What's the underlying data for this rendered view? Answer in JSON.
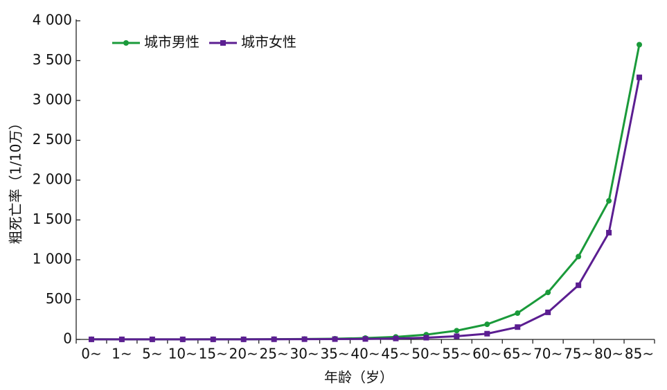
{
  "chart_data": {
    "type": "line",
    "ylabel": "粗死亡率（1/10万）",
    "xlabel": "年龄（岁）",
    "categories": [
      "0~",
      "1~",
      "5~",
      "10~",
      "15~",
      "20~",
      "25~",
      "30~",
      "35~",
      "40~",
      "45~",
      "50~",
      "55~",
      "60~",
      "65~",
      "70~",
      "75~",
      "80~",
      "85~"
    ],
    "series": [
      {
        "name": "城市男性",
        "color": "#1a9a3a",
        "marker": "circle",
        "values": [
          2,
          1,
          1,
          1,
          2,
          2,
          3,
          5,
          9,
          17,
          32,
          60,
          110,
          190,
          330,
          590,
          1040,
          1740,
          3700
        ]
      },
      {
        "name": "城市女性",
        "color": "#5b1e91",
        "marker": "square",
        "values": [
          1,
          1,
          1,
          1,
          1,
          1,
          2,
          3,
          4,
          6,
          12,
          22,
          40,
          72,
          155,
          340,
          680,
          1340,
          3290
        ]
      }
    ],
    "ylim": [
      0,
      4000
    ],
    "yticks": [
      0,
      500,
      {
        "value": 1000,
        "label": "1 000"
      },
      {
        "value": 1500,
        "label": "1 500"
      },
      {
        "value": 2000,
        "label": "2 000"
      },
      {
        "value": 2500,
        "label": "2 500"
      },
      {
        "value": 3000,
        "label": "3 000"
      },
      {
        "value": 3500,
        "label": "3 500"
      },
      {
        "value": 4000,
        "label": "4 000"
      }
    ],
    "legend": "upper left"
  }
}
